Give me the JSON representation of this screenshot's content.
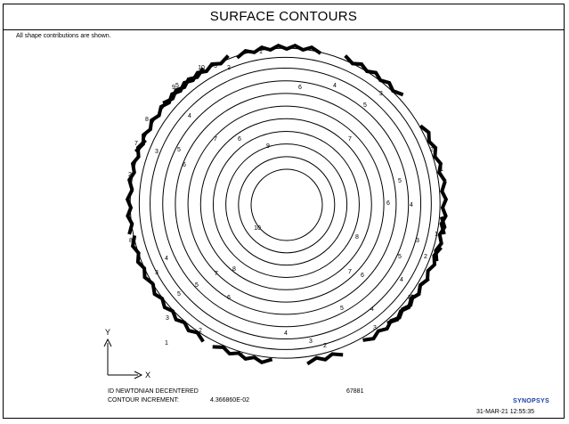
{
  "header": {
    "title": "SURFACE CONTOURS",
    "note": "All shape contributions are shown."
  },
  "plot": {
    "contour_labels": [
      {
        "id": "c1",
        "text": "1"
      },
      {
        "id": "c2",
        "text": "2"
      },
      {
        "id": "c3",
        "text": "3"
      },
      {
        "id": "c4",
        "text": "4"
      },
      {
        "id": "c5",
        "text": "5"
      },
      {
        "id": "c6",
        "text": "6"
      },
      {
        "id": "c7",
        "text": "7"
      },
      {
        "id": "c8",
        "text": "8"
      },
      {
        "id": "c9",
        "text": "9"
      },
      {
        "id": "c10",
        "text": "10"
      }
    ],
    "axes": {
      "y_label": "Y",
      "x_label": "X"
    },
    "colors": {
      "lines": "#000000"
    }
  },
  "footer": {
    "surface_id": "ID NEWTONIAN DECENTERED",
    "surface_number": "67881",
    "increment_label": "CONTOUR INCREMENT:",
    "increment_value": "4.366860E-02",
    "brand": "SYNOPSYS",
    "brand_color": "#1a3aa8",
    "timestamp": "31-MAR-21  12:55:35"
  }
}
